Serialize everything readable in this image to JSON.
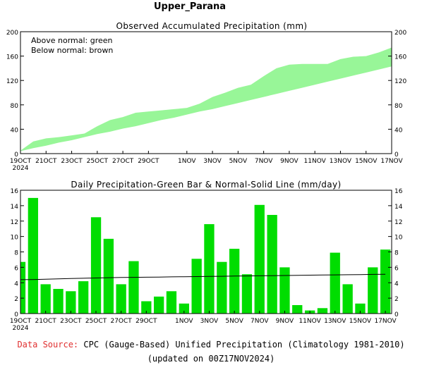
{
  "main_title": "Upper_Parana",
  "footer": {
    "source_label": "Data Source:",
    "source_text": "CPC (Gauge-Based) Unified Precipitation (Climatology 1981-2010)",
    "updated": "(updated on 00Z17NOV2024)"
  },
  "colors": {
    "bar_green": "#00dd00",
    "band_green": "#98f698",
    "normal_line": "#000000",
    "source_red": "#e03030"
  },
  "chart_data": [
    {
      "type": "area",
      "title": "Observed Accumulated Precipitation (mm)",
      "legend_notes": [
        "Above normal: green",
        "Below normal: brown"
      ],
      "ylim": [
        0,
        200
      ],
      "yticks": [
        0,
        40,
        80,
        120,
        160,
        200
      ],
      "x_tick_labels": [
        "19OCT",
        "21OCT",
        "23OCT",
        "25OCT",
        "27OCT",
        "29OCT",
        "1NOV",
        "3NOV",
        "5NOV",
        "7NOV",
        "9NOV",
        "11NOV",
        "13NOV",
        "15NOV",
        "17NOV"
      ],
      "x_year_label": "2024",
      "days": [
        "19OCT",
        "20OCT",
        "21OCT",
        "22OCT",
        "23OCT",
        "24OCT",
        "25OCT",
        "26OCT",
        "27OCT",
        "28OCT",
        "29OCT",
        "30OCT",
        "31OCT",
        "1NOV",
        "2NOV",
        "3NOV",
        "4NOV",
        "5NOV",
        "6NOV",
        "7NOV",
        "8NOV",
        "9NOV",
        "10NOV",
        "11NOV",
        "12NOV",
        "13NOV",
        "14NOV",
        "15NOV",
        "16NOV",
        "17NOV"
      ],
      "observed": [
        5,
        20,
        25,
        27,
        30,
        33,
        45,
        55,
        60,
        67,
        69,
        71,
        73,
        75,
        82,
        93,
        100,
        108,
        113,
        127,
        140,
        146,
        147,
        147,
        147,
        155,
        159,
        160,
        166,
        174
      ],
      "normal": [
        4,
        9,
        13,
        18,
        22,
        27,
        32,
        36,
        41,
        45,
        50,
        55,
        59,
        64,
        69,
        73,
        78,
        83,
        88,
        93,
        98,
        103,
        108,
        113,
        118,
        123,
        128,
        133,
        138,
        143
      ]
    },
    {
      "type": "bar",
      "title": "Daily Precipitation-Green Bar & Normal-Solid Line (mm/day)",
      "ylim": [
        0,
        16
      ],
      "yticks": [
        0,
        2,
        4,
        6,
        8,
        10,
        12,
        14,
        16
      ],
      "x_tick_labels": [
        "19OCT",
        "21OCT",
        "23OCT",
        "25OCT",
        "27OCT",
        "29OCT",
        "1NOV",
        "3NOV",
        "5NOV",
        "7NOV",
        "9NOV",
        "11NOV",
        "13NOV",
        "15NOV",
        "17NOV"
      ],
      "x_year_label": "2024",
      "days": [
        "19OCT",
        "20OCT",
        "21OCT",
        "22OCT",
        "23OCT",
        "24OCT",
        "25OCT",
        "26OCT",
        "27OCT",
        "28OCT",
        "29OCT",
        "30OCT",
        "31OCT",
        "1NOV",
        "2NOV",
        "3NOV",
        "4NOV",
        "5NOV",
        "6NOV",
        "7NOV",
        "8NOV",
        "9NOV",
        "10NOV",
        "11NOV",
        "12NOV",
        "13NOV",
        "14NOV",
        "15NOV",
        "16NOV",
        "17NOV"
      ],
      "values": [
        6.7,
        15.0,
        3.8,
        3.2,
        2.9,
        4.2,
        12.5,
        9.7,
        3.8,
        6.8,
        1.6,
        2.2,
        2.9,
        1.3,
        7.1,
        11.6,
        6.7,
        8.4,
        5.1,
        14.1,
        12.8,
        6.0,
        1.1,
        0.4,
        0.7,
        7.9,
        3.8,
        1.3,
        6.0,
        8.3
      ],
      "normal": [
        4.4,
        4.42,
        4.45,
        4.5,
        4.55,
        4.58,
        4.62,
        4.65,
        4.68,
        4.7,
        4.72,
        4.74,
        4.76,
        4.78,
        4.8,
        4.82,
        4.84,
        4.86,
        4.88,
        4.9,
        4.92,
        4.94,
        4.96,
        4.98,
        5.0,
        5.02,
        5.04,
        5.06,
        5.08,
        5.1
      ]
    }
  ]
}
